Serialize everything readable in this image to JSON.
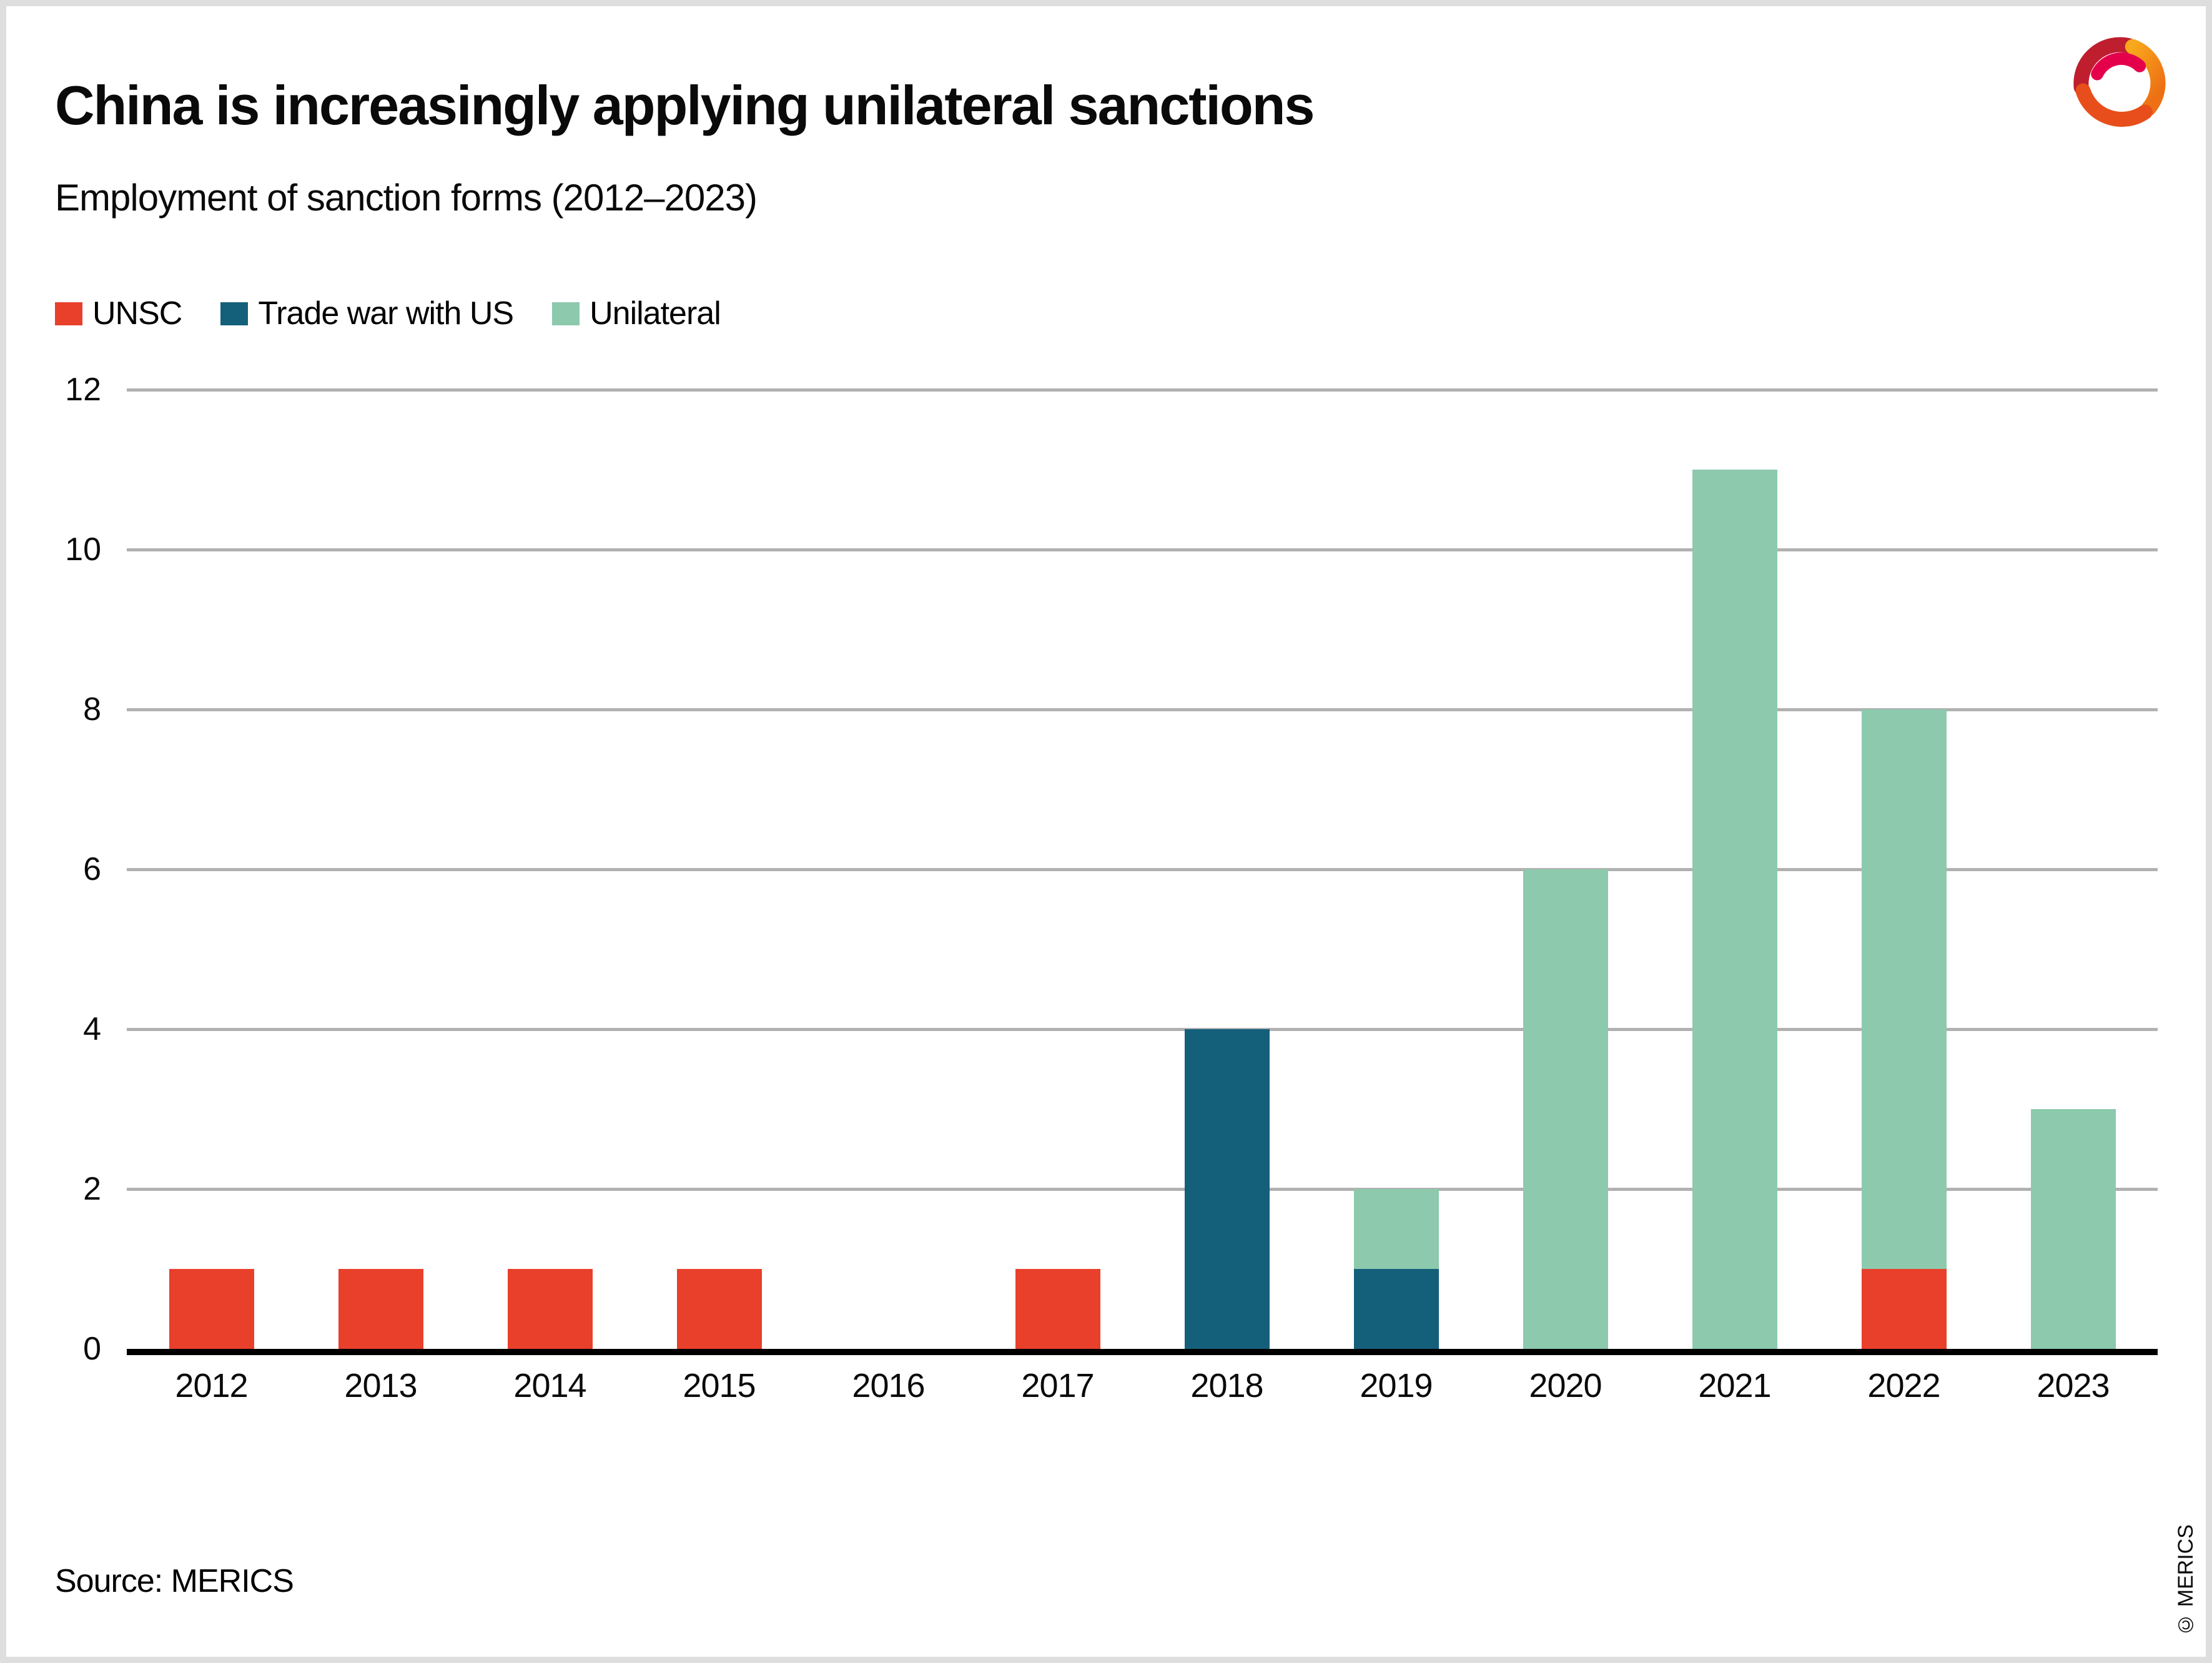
{
  "header": {
    "title": "China is increasingly applying unilateral sanctions",
    "subtitle": "Employment of sanction forms (2012–2023)"
  },
  "chart_data": {
    "type": "bar",
    "stacked": true,
    "title": "China is increasingly applying unilateral sanctions",
    "subtitle": "Employment of sanction forms (2012–2023)",
    "categories": [
      "2012",
      "2013",
      "2014",
      "2015",
      "2016",
      "2017",
      "2018",
      "2019",
      "2020",
      "2021",
      "2022",
      "2023"
    ],
    "series": [
      {
        "name": "UNSC",
        "color": "#E8402B",
        "values": [
          1,
          1,
          1,
          1,
          0,
          1,
          0,
          0,
          0,
          0,
          1,
          0
        ]
      },
      {
        "name": "Trade war with US",
        "color": "#14607A",
        "values": [
          0,
          0,
          0,
          0,
          0,
          0,
          4,
          1,
          0,
          0,
          0,
          0
        ]
      },
      {
        "name": "Unilateral",
        "color": "#8CC9AD",
        "values": [
          0,
          0,
          0,
          0,
          0,
          0,
          0,
          1,
          6,
          11,
          7,
          3
        ]
      }
    ],
    "ylim": [
      0,
      12
    ],
    "yticks": [
      0,
      2,
      4,
      6,
      8,
      10,
      12
    ],
    "grid": "horizontal",
    "legend_position": "top-left",
    "gridline_color": "#b1b1b1",
    "axis_color": "#000000"
  },
  "footer": {
    "source": "Source: MERICS",
    "copyright": "© MERICS"
  },
  "logo": {
    "name": "MERICS logo",
    "colors": [
      "#BE1E2D",
      "#F49712",
      "#E5004C",
      "#E84E1B"
    ]
  }
}
